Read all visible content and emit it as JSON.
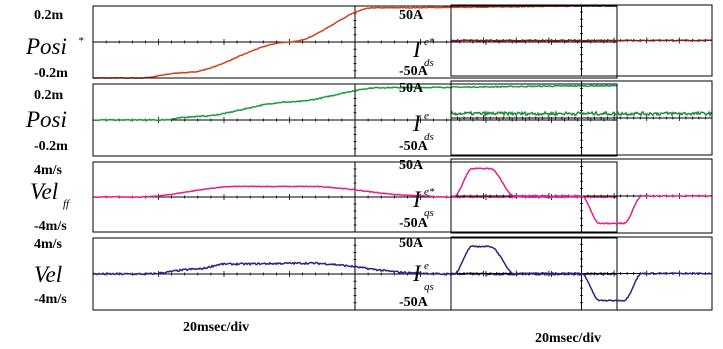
{
  "colors": {
    "frame": "#000000",
    "posi_ref": "#d2401e",
    "posi": "#1f9a45",
    "vel_ff": "#e2208c",
    "vel": "#2e2282",
    "ids_ref": "#8a1a1a",
    "ids": "#1f8a3a",
    "iqs_ref": "#e2208c",
    "iqs": "#2e2282"
  },
  "timebase": {
    "left": "20msec/div",
    "right": "20msec/div"
  },
  "chart_data": [
    {
      "type": "line",
      "name": "posi_ref",
      "label": {
        "main": "Posi",
        "sup": "*",
        "sub": ""
      },
      "scale_top": "0.2m",
      "scale_bottom": "-0.2m",
      "ylim": [
        -0.2,
        0.2
      ],
      "divisions_x": 8,
      "divisions_y": 2,
      "series": [
        {
          "color_key": "posi_ref",
          "noise": 0.002,
          "x": [
            0,
            0.7,
            1.4,
            3.0,
            4.3,
            8.0
          ],
          "y": [
            -0.2,
            -0.2,
            -0.17,
            0.0,
            0.19,
            0.2
          ]
        }
      ]
    },
    {
      "type": "line",
      "name": "posi",
      "label": {
        "main": "Posi",
        "sup": "",
        "sub": ""
      },
      "scale_top": "0.2m",
      "scale_bottom": "-0.2m",
      "ylim": [
        -0.2,
        0.2
      ],
      "divisions_x": 8,
      "divisions_y": 2,
      "series": [
        {
          "color_key": "posi",
          "noise": 0.003,
          "x": [
            0,
            1.0,
            1.6,
            3.0,
            4.4,
            8.0
          ],
          "y": [
            0.0,
            0.0,
            0.02,
            0.1,
            0.18,
            0.19
          ]
        }
      ]
    },
    {
      "type": "line",
      "name": "vel_ff",
      "label": {
        "main": "Vel",
        "sup": "",
        "sub": "ff"
      },
      "scale_top": "4m/s",
      "scale_bottom": "-4m/s",
      "ylim": [
        -4,
        4
      ],
      "divisions_x": 8,
      "divisions_y": 2,
      "series": [
        {
          "color_key": "vel_ff",
          "noise": 0.04,
          "x": [
            0,
            0.7,
            2.2,
            3.3,
            5.0,
            5.3,
            8.0
          ],
          "y": [
            0,
            0,
            1.2,
            1.2,
            0.15,
            0,
            0
          ]
        }
      ]
    },
    {
      "type": "line",
      "name": "vel",
      "label": {
        "main": "Vel",
        "sup": "",
        "sub": ""
      },
      "scale_top": "4m/s",
      "scale_bottom": "-4m/s",
      "ylim": [
        -4,
        4
      ],
      "divisions_x": 8,
      "divisions_y": 2,
      "series": [
        {
          "color_key": "vel",
          "noise": 0.1,
          "x": [
            0,
            0.8,
            1.6,
            2.0,
            3.3,
            5.0,
            5.3,
            8.0
          ],
          "y": [
            0,
            0,
            0.55,
            1.1,
            1.2,
            0.1,
            0,
            0
          ]
        }
      ]
    },
    {
      "type": "line",
      "name": "ids_ref",
      "label": {
        "main": "I",
        "sup": "e*",
        "sub": "ds"
      },
      "scale_top": "50A",
      "scale_bottom": "-50A",
      "ylim": [
        -50,
        50
      ],
      "divisions_x": 8,
      "divisions_y": 2,
      "series": [
        {
          "color_key": "ids_ref",
          "noise": 0.6,
          "x": [
            0,
            8.0
          ],
          "y": [
            0,
            0
          ]
        }
      ]
    },
    {
      "type": "line",
      "name": "ids",
      "label": {
        "main": "I",
        "sup": "e",
        "sub": "ds"
      },
      "scale_top": "50A",
      "scale_bottom": "-50A",
      "ylim": [
        -50,
        50
      ],
      "divisions_x": 8,
      "divisions_y": 2,
      "series": [
        {
          "color_key": "ids",
          "noise": 2.2,
          "x": [
            0,
            8.0
          ],
          "y": [
            6,
            6
          ]
        }
      ]
    },
    {
      "type": "line",
      "name": "iqs_ref",
      "label": {
        "main": "I",
        "sup": "e*",
        "sub": "qs"
      },
      "scale_top": "50A",
      "scale_bottom": "-50A",
      "ylim": [
        -50,
        50
      ],
      "divisions_x": 8,
      "divisions_y": 2,
      "series": [
        {
          "color_key": "iqs_ref",
          "noise": 0.6,
          "x": [
            0,
            0.1,
            0.65,
            1.2,
            1.95,
            2.5,
            4.0,
            4.55,
            5.3,
            5.85,
            6.4,
            8.0
          ],
          "y": [
            0,
            0,
            37,
            37,
            0,
            0,
            0,
            -37,
            -37,
            0,
            0,
            0
          ]
        }
      ]
    },
    {
      "type": "line",
      "name": "iqs",
      "label": {
        "main": "I",
        "sup": "e",
        "sub": "qs"
      },
      "scale_top": "50A",
      "scale_bottom": "-50A",
      "ylim": [
        -50,
        50
      ],
      "divisions_x": 8,
      "divisions_y": 2,
      "series": [
        {
          "color_key": "iqs",
          "noise": 0.8,
          "x": [
            0,
            0.1,
            0.65,
            1.2,
            1.95,
            2.5,
            4.0,
            4.55,
            5.3,
            5.85,
            6.4,
            8.0
          ],
          "y": [
            0,
            0,
            37,
            37,
            0,
            0,
            0,
            -37,
            -37,
            0,
            0,
            0
          ]
        }
      ]
    }
  ]
}
